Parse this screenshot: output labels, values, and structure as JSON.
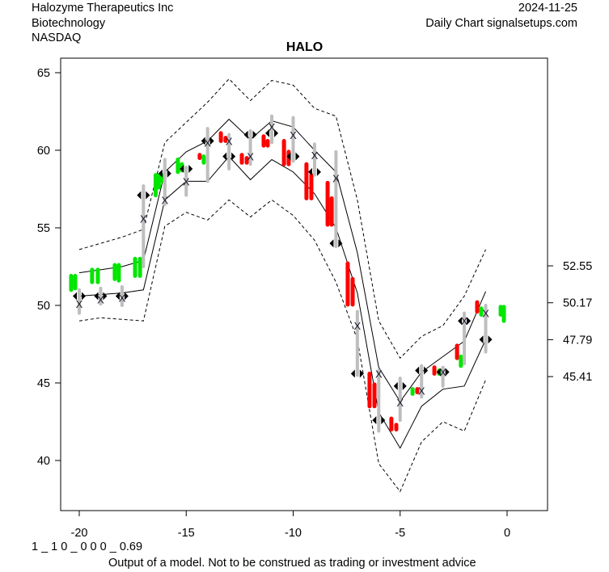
{
  "header": {
    "company": "Halozyme Therapeutics Inc",
    "sector": "Biotechnology",
    "exchange": "NASDAQ",
    "date": "2024-11-25",
    "source": "Daily Chart signalsetups.com"
  },
  "footer": {
    "code": "1 _ 1 0 _ 0 0 0 _ 0.69",
    "disclaimer": "Output of a model. Not to be construed as trading or investment advice"
  },
  "chart_data": {
    "type": "candlestick-band",
    "title": "HALO",
    "xlim": [
      -21,
      1.9
    ],
    "ylim": [
      37.5,
      66
    ],
    "x_ticks": [
      -20,
      -15,
      -10,
      -5,
      0
    ],
    "y_ticks": [
      40,
      45,
      50,
      55,
      60,
      65
    ],
    "right_axis_labels": [
      52.55,
      50.17,
      47.79,
      45.41
    ],
    "colors": {
      "up": "#00e600",
      "down": "#ff0000",
      "range": "#bebebe",
      "line": "#000000"
    },
    "weeks": {
      "x": [
        -20,
        -19,
        -18,
        -17,
        -16,
        -15,
        -14,
        -13,
        -12,
        -11,
        -10,
        -9,
        -8,
        -7,
        -6,
        -5,
        -4,
        -3,
        -2,
        -1
      ],
      "upper_solid": [
        52.1,
        52.3,
        52.5,
        52.9,
        58.6,
        59.9,
        60.6,
        62.0,
        60.7,
        61.9,
        61.5,
        60.0,
        58.6,
        53.4,
        46.0,
        43.8,
        45.7,
        46.7,
        47.7,
        50.9
      ],
      "lower_solid": [
        50.6,
        50.7,
        50.8,
        51.0,
        56.8,
        58.0,
        58.0,
        59.6,
        58.1,
        59.4,
        58.6,
        57.2,
        55.0,
        50.8,
        43.1,
        40.8,
        43.5,
        44.6,
        44.8,
        47.8
      ],
      "upper_dashed": [
        53.6,
        54.0,
        54.4,
        54.9,
        60.5,
        61.8,
        63.1,
        64.6,
        63.2,
        64.5,
        64.2,
        62.7,
        62.2,
        56.8,
        49.0,
        46.6,
        48.0,
        48.7,
        50.6,
        53.6
      ],
      "lower_dashed": [
        49.0,
        49.2,
        49.1,
        49.0,
        55.1,
        56.0,
        55.5,
        56.8,
        55.7,
        56.8,
        55.8,
        54.2,
        51.5,
        47.8,
        39.8,
        38.0,
        41.2,
        42.5,
        41.9,
        45.2
      ],
      "high": [
        51.0,
        51.1,
        51.2,
        57.7,
        59.4,
        58.9,
        61.4,
        61.0,
        61.25,
        62.2,
        62.1,
        60.4,
        59.9,
        49.6,
        45.8,
        45.3,
        46.1,
        46.0,
        49.5,
        50.0
      ],
      "low": [
        49.5,
        50.1,
        50.0,
        52.5,
        56.5,
        57.1,
        58.0,
        58.8,
        59.1,
        60.5,
        59.3,
        58.4,
        53.8,
        45.5,
        41.9,
        42.6,
        44.1,
        44.8,
        46.25,
        47.0
      ],
      "x_marker": [
        50.1,
        50.4,
        50.5,
        55.6,
        56.8,
        58.0,
        60.5,
        60.6,
        59.6,
        61.5,
        61.0,
        59.7,
        58.2,
        48.7,
        45.6,
        43.75,
        44.5,
        45.7,
        49.0,
        49.5
      ],
      "diamond": [
        50.6,
        50.6,
        50.6,
        57.1,
        58.5,
        58.8,
        60.6,
        59.6,
        61.0,
        61.1,
        59.6,
        58.6,
        54.0,
        45.6,
        42.6,
        44.8,
        45.8,
        45.7,
        49.0,
        47.8
      ]
    },
    "daily_bars": [
      [
        -20.38,
        51.9,
        51.0,
        "up"
      ],
      [
        -20.19,
        51.9,
        51.1,
        "up"
      ],
      [
        -19.4,
        52.3,
        51.5,
        "up"
      ],
      [
        -19.13,
        52.3,
        51.5,
        "up"
      ],
      [
        -18.34,
        52.6,
        51.7,
        "up"
      ],
      [
        -18.15,
        52.6,
        51.6,
        "up"
      ],
      [
        -17.39,
        53.0,
        51.9,
        "up"
      ],
      [
        -17.16,
        53.0,
        51.9,
        "up"
      ],
      [
        -16.43,
        58.4,
        57.1,
        "up"
      ],
      [
        -16.28,
        58.4,
        57.6,
        "up"
      ],
      [
        -16.13,
        58.4,
        58.0,
        "up"
      ],
      [
        -15.39,
        59.4,
        58.6,
        "up"
      ],
      [
        -15.2,
        59.1,
        58.7,
        "up"
      ],
      [
        -14.37,
        59.7,
        59.5,
        "down"
      ],
      [
        -14.18,
        59.6,
        59.2,
        "up"
      ],
      [
        -13.38,
        61.1,
        60.6,
        "down"
      ],
      [
        -13.16,
        60.8,
        60.6,
        "down"
      ],
      [
        -12.4,
        59.7,
        59.2,
        "down"
      ],
      [
        -12.17,
        59.5,
        59.2,
        "down"
      ],
      [
        -11.38,
        60.9,
        60.3,
        "down"
      ],
      [
        -11.19,
        60.6,
        60.3,
        "down"
      ],
      [
        -10.43,
        60.6,
        59.1,
        "down"
      ],
      [
        -10.21,
        59.9,
        59.1,
        "down"
      ],
      [
        -9.38,
        59.1,
        56.9,
        "down"
      ],
      [
        -9.15,
        58.4,
        56.9,
        "down"
      ],
      [
        -8.39,
        57.9,
        55.2,
        "down"
      ],
      [
        -8.2,
        56.9,
        55.2,
        "down"
      ],
      [
        -7.45,
        52.7,
        50.05,
        "down"
      ],
      [
        -7.22,
        51.7,
        50.05,
        "down"
      ],
      [
        -6.43,
        45.6,
        43.5,
        "down"
      ],
      [
        -6.2,
        44.9,
        43.5,
        "down"
      ],
      [
        -5.41,
        42.7,
        42.0,
        "down"
      ],
      [
        -5.18,
        42.3,
        42.0,
        "down"
      ],
      [
        -4.42,
        44.6,
        44.3,
        "up"
      ],
      [
        -4.2,
        44.6,
        44.4,
        "down"
      ],
      [
        -3.4,
        46.0,
        45.6,
        "down"
      ],
      [
        -3.18,
        45.8,
        45.6,
        "up"
      ],
      [
        -2.34,
        47.4,
        46.6,
        "down"
      ],
      [
        -2.16,
        46.7,
        46.1,
        "up"
      ],
      [
        -1.4,
        50.2,
        49.6,
        "down"
      ],
      [
        -1.21,
        49.8,
        49.4,
        "up"
      ],
      [
        -0.3,
        49.9,
        49.4,
        "up"
      ],
      [
        -0.15,
        49.9,
        49.0,
        "up"
      ]
    ]
  }
}
